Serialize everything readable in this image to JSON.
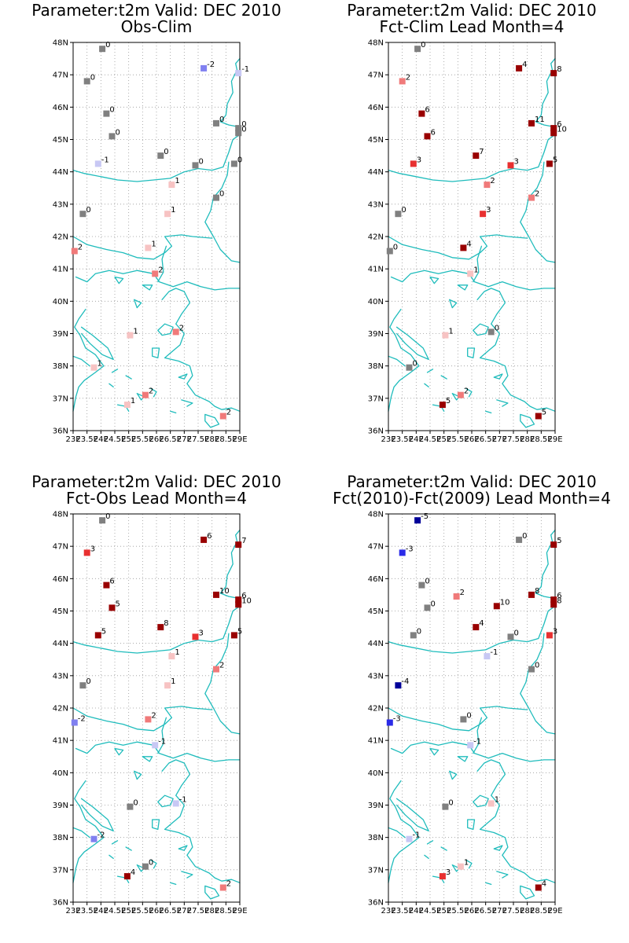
{
  "panels": [
    {
      "id": "obs-clim",
      "title_line1": "Parameter:t2m Valid: DEC 2010",
      "title_line2": "Obs-Clim",
      "stations": [
        {
          "lon": 24.05,
          "lat": 47.8,
          "value": 0,
          "label": "0"
        },
        {
          "lon": 23.5,
          "lat": 46.8,
          "value": 0,
          "label": "0"
        },
        {
          "lon": 24.2,
          "lat": 45.8,
          "value": 0,
          "label": "0"
        },
        {
          "lon": 24.4,
          "lat": 45.1,
          "value": 0,
          "label": "0"
        },
        {
          "lon": 23.9,
          "lat": 44.25,
          "value": -1,
          "label": "-1"
        },
        {
          "lon": 27.7,
          "lat": 47.2,
          "value": -2,
          "label": "-2"
        },
        {
          "lon": 28.95,
          "lat": 47.05,
          "value": -1,
          "label": "-1"
        },
        {
          "lon": 28.15,
          "lat": 45.5,
          "value": 0,
          "label": "0"
        },
        {
          "lon": 28.95,
          "lat": 45.35,
          "value": 0,
          "label": "0"
        },
        {
          "lon": 28.95,
          "lat": 45.2,
          "value": 0,
          "label": "0"
        },
        {
          "lon": 26.15,
          "lat": 44.5,
          "value": 0,
          "label": "0"
        },
        {
          "lon": 27.4,
          "lat": 44.2,
          "value": 0,
          "label": "0"
        },
        {
          "lon": 28.8,
          "lat": 44.25,
          "value": 0,
          "label": "0"
        },
        {
          "lon": 26.55,
          "lat": 43.6,
          "value": 1,
          "label": "1"
        },
        {
          "lon": 28.15,
          "lat": 43.2,
          "value": 0,
          "label": "0"
        },
        {
          "lon": 23.35,
          "lat": 42.7,
          "value": 0,
          "label": "0"
        },
        {
          "lon": 26.4,
          "lat": 42.7,
          "value": 1,
          "label": "1"
        },
        {
          "lon": 25.7,
          "lat": 41.65,
          "value": 1,
          "label": "1"
        },
        {
          "lon": 23.05,
          "lat": 41.55,
          "value": 2,
          "label": "2"
        },
        {
          "lon": 25.95,
          "lat": 40.85,
          "value": 2,
          "label": "2"
        },
        {
          "lon": 26.7,
          "lat": 39.05,
          "value": 2,
          "label": "2"
        },
        {
          "lon": 25.05,
          "lat": 38.95,
          "value": 1,
          "label": "1"
        },
        {
          "lon": 23.75,
          "lat": 37.95,
          "value": 1,
          "label": "1"
        },
        {
          "lon": 25.6,
          "lat": 37.1,
          "value": 2,
          "label": "2"
        },
        {
          "lon": 24.95,
          "lat": 36.8,
          "value": 1,
          "label": "1"
        },
        {
          "lon": 28.4,
          "lat": 36.45,
          "value": 2,
          "label": "2"
        }
      ]
    },
    {
      "id": "fct-clim",
      "title_line1": "Parameter:t2m Valid: DEC 2010",
      "title_line2": "Fct-Clim Lead Month=4",
      "stations": [
        {
          "lon": 24.05,
          "lat": 47.8,
          "value": 0,
          "label": "0"
        },
        {
          "lon": 23.5,
          "lat": 46.8,
          "value": 2,
          "label": "2"
        },
        {
          "lon": 24.2,
          "lat": 45.8,
          "value": 6,
          "label": "6"
        },
        {
          "lon": 24.4,
          "lat": 45.1,
          "value": 6,
          "label": "6"
        },
        {
          "lon": 23.9,
          "lat": 44.25,
          "value": 3,
          "label": "3"
        },
        {
          "lon": 27.7,
          "lat": 47.2,
          "value": 4,
          "label": "4"
        },
        {
          "lon": 28.95,
          "lat": 47.05,
          "value": 8,
          "label": "8"
        },
        {
          "lon": 28.15,
          "lat": 45.5,
          "value": 11,
          "label": "11"
        },
        {
          "lon": 28.95,
          "lat": 45.35,
          "value": 6,
          "label": "6"
        },
        {
          "lon": 28.95,
          "lat": 45.2,
          "value": 10,
          "label": "10"
        },
        {
          "lon": 26.15,
          "lat": 44.5,
          "value": 7,
          "label": "7"
        },
        {
          "lon": 27.4,
          "lat": 44.2,
          "value": 3,
          "label": "3"
        },
        {
          "lon": 28.8,
          "lat": 44.25,
          "value": 5,
          "label": "5"
        },
        {
          "lon": 26.55,
          "lat": 43.6,
          "value": 2,
          "label": "2"
        },
        {
          "lon": 28.15,
          "lat": 43.2,
          "value": 2,
          "label": "2"
        },
        {
          "lon": 23.35,
          "lat": 42.7,
          "value": 0,
          "label": "0"
        },
        {
          "lon": 26.4,
          "lat": 42.7,
          "value": 3,
          "label": "3"
        },
        {
          "lon": 25.7,
          "lat": 41.65,
          "value": 4,
          "label": "4"
        },
        {
          "lon": 23.05,
          "lat": 41.55,
          "value": 0,
          "label": "0"
        },
        {
          "lon": 25.95,
          "lat": 40.85,
          "value": 1,
          "label": "1"
        },
        {
          "lon": 26.7,
          "lat": 39.05,
          "value": 0,
          "label": "0"
        },
        {
          "lon": 25.05,
          "lat": 38.95,
          "value": 1,
          "label": "1"
        },
        {
          "lon": 23.75,
          "lat": 37.95,
          "value": 0,
          "label": "0"
        },
        {
          "lon": 25.6,
          "lat": 37.1,
          "value": 2,
          "label": "2"
        },
        {
          "lon": 24.95,
          "lat": 36.8,
          "value": 5,
          "label": "5"
        },
        {
          "lon": 28.4,
          "lat": 36.45,
          "value": 5,
          "label": "5"
        }
      ]
    },
    {
      "id": "fct-obs",
      "title_line1": "Parameter:t2m Valid: DEC 2010",
      "title_line2": "Fct-Obs Lead Month=4",
      "stations": [
        {
          "lon": 24.05,
          "lat": 47.8,
          "value": 0,
          "label": "0"
        },
        {
          "lon": 23.5,
          "lat": 46.8,
          "value": 3,
          "label": "3"
        },
        {
          "lon": 24.2,
          "lat": 45.8,
          "value": 6,
          "label": "6"
        },
        {
          "lon": 24.4,
          "lat": 45.1,
          "value": 5,
          "label": "5"
        },
        {
          "lon": 23.9,
          "lat": 44.25,
          "value": 5,
          "label": "5"
        },
        {
          "lon": 27.7,
          "lat": 47.2,
          "value": 6,
          "label": "6"
        },
        {
          "lon": 28.95,
          "lat": 47.05,
          "value": 7,
          "label": "7"
        },
        {
          "lon": 28.15,
          "lat": 45.5,
          "value": 10,
          "label": "10"
        },
        {
          "lon": 28.95,
          "lat": 45.35,
          "value": 6,
          "label": "6"
        },
        {
          "lon": 28.95,
          "lat": 45.2,
          "value": 10,
          "label": "10"
        },
        {
          "lon": 26.15,
          "lat": 44.5,
          "value": 8,
          "label": "8"
        },
        {
          "lon": 27.4,
          "lat": 44.2,
          "value": 3,
          "label": "3"
        },
        {
          "lon": 28.8,
          "lat": 44.25,
          "value": 5,
          "label": "5"
        },
        {
          "lon": 26.55,
          "lat": 43.6,
          "value": 1,
          "label": "1"
        },
        {
          "lon": 28.15,
          "lat": 43.2,
          "value": 2,
          "label": "2"
        },
        {
          "lon": 23.35,
          "lat": 42.7,
          "value": 0,
          "label": "0"
        },
        {
          "lon": 26.4,
          "lat": 42.7,
          "value": 1,
          "label": "1"
        },
        {
          "lon": 25.7,
          "lat": 41.65,
          "value": 2,
          "label": "2"
        },
        {
          "lon": 23.05,
          "lat": 41.55,
          "value": -2,
          "label": "-2"
        },
        {
          "lon": 25.95,
          "lat": 40.85,
          "value": -1,
          "label": "-1"
        },
        {
          "lon": 26.7,
          "lat": 39.05,
          "value": -1,
          "label": "-1"
        },
        {
          "lon": 25.05,
          "lat": 38.95,
          "value": 0,
          "label": "0"
        },
        {
          "lon": 23.75,
          "lat": 37.95,
          "value": -2,
          "label": "-2"
        },
        {
          "lon": 25.6,
          "lat": 37.1,
          "value": 0,
          "label": "0"
        },
        {
          "lon": 24.95,
          "lat": 36.8,
          "value": 4,
          "label": "4"
        },
        {
          "lon": 28.4,
          "lat": 36.45,
          "value": 2,
          "label": "2"
        }
      ]
    },
    {
      "id": "fct2010-fct2009",
      "title_line1": "Parameter:t2m Valid: DEC 2010",
      "title_line2": "Fct(2010)-Fct(2009) Lead Month=4",
      "stations": [
        {
          "lon": 24.05,
          "lat": 47.8,
          "value": -5,
          "label": "-5"
        },
        {
          "lon": 23.5,
          "lat": 46.8,
          "value": -3,
          "label": "-3"
        },
        {
          "lon": 24.2,
          "lat": 45.8,
          "value": 0,
          "label": "0"
        },
        {
          "lon": 24.4,
          "lat": 45.1,
          "value": 0,
          "label": "0"
        },
        {
          "lon": 23.9,
          "lat": 44.25,
          "value": 0,
          "label": "0"
        },
        {
          "lon": 27.7,
          "lat": 47.2,
          "value": 0,
          "label": "0"
        },
        {
          "lon": 28.95,
          "lat": 47.05,
          "value": 5,
          "label": "5"
        },
        {
          "lon": 28.15,
          "lat": 45.5,
          "value": 8,
          "label": "8"
        },
        {
          "lon": 28.95,
          "lat": 45.35,
          "value": 6,
          "label": "6"
        },
        {
          "lon": 28.95,
          "lat": 45.2,
          "value": 8,
          "label": "8"
        },
        {
          "lon": 25.45,
          "lat": 45.45,
          "value": 2,
          "label": "2"
        },
        {
          "lon": 26.9,
          "lat": 45.15,
          "value": 10,
          "label": "10"
        },
        {
          "lon": 26.15,
          "lat": 44.5,
          "value": 4,
          "label": "4"
        },
        {
          "lon": 27.4,
          "lat": 44.2,
          "value": 0,
          "label": "0"
        },
        {
          "lon": 28.8,
          "lat": 44.25,
          "value": 3,
          "label": "3"
        },
        {
          "lon": 26.55,
          "lat": 43.6,
          "value": -1,
          "label": "-1"
        },
        {
          "lon": 28.15,
          "lat": 43.2,
          "value": 0,
          "label": "0"
        },
        {
          "lon": 23.35,
          "lat": 42.7,
          "value": -4,
          "label": "-4"
        },
        {
          "lon": 25.7,
          "lat": 41.65,
          "value": 0,
          "label": "0"
        },
        {
          "lon": 23.05,
          "lat": 41.55,
          "value": -3,
          "label": "-3"
        },
        {
          "lon": 25.95,
          "lat": 40.85,
          "value": -1,
          "label": "-1"
        },
        {
          "lon": 26.7,
          "lat": 39.05,
          "value": 1,
          "label": "1"
        },
        {
          "lon": 25.05,
          "lat": 38.95,
          "value": 0,
          "label": "0"
        },
        {
          "lon": 23.75,
          "lat": 37.95,
          "value": -1,
          "label": "-1"
        },
        {
          "lon": 25.6,
          "lat": 37.1,
          "value": 1,
          "label": "1"
        },
        {
          "lon": 24.95,
          "lat": 36.8,
          "value": 3,
          "label": "3"
        },
        {
          "lon": 28.4,
          "lat": 36.45,
          "value": 4,
          "label": "4"
        }
      ]
    }
  ],
  "axes": {
    "lat_ticks": [
      "48N",
      "47N",
      "46N",
      "45N",
      "44N",
      "43N",
      "42N",
      "41N",
      "40N",
      "39N",
      "38N",
      "37N",
      "36N"
    ],
    "lon_ticks": [
      "23E",
      "23.5E",
      "24E",
      "24.5E",
      "25E",
      "25.5E",
      "26E",
      "26.5E",
      "27E",
      "27.5E",
      "28E",
      "28.5E",
      "29E"
    ],
    "lon_range": [
      23,
      29
    ],
    "lat_range": [
      36,
      48
    ]
  },
  "colors": {
    "coastline": "#1fbcbc",
    "zero": "#808080",
    "pos_1": "#f7c3c3",
    "pos_2": "#f07a7a",
    "pos_3": "#e83030",
    "pos_high": "#990000",
    "neg_1": "#c8c8f4",
    "neg_2": "#8080f0",
    "neg_3": "#2b2be8",
    "neg_high": "#000099"
  }
}
